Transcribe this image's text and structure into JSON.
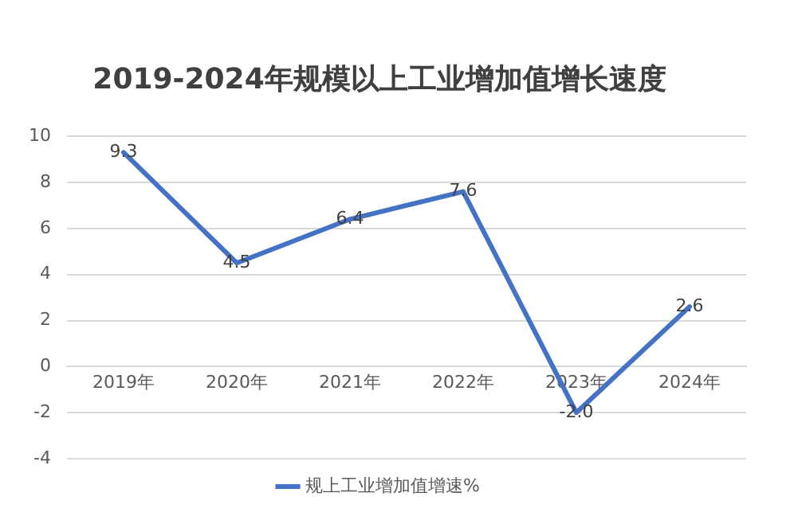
{
  "chart_data": {
    "type": "line",
    "title": "2019-2024年规模以上工业增加值增长速度",
    "categories": [
      "2019年",
      "2020年",
      "2021年",
      "2022年",
      "2023年",
      "2024年"
    ],
    "series": [
      {
        "name": "规上工业增加值增速%",
        "color": "#4472c4",
        "values": [
          9.3,
          4.5,
          6.4,
          7.6,
          -2.0,
          2.6
        ],
        "value_labels": [
          "9.3",
          "4.5",
          "6.4",
          "7.6",
          "-2.0",
          "2.6"
        ]
      }
    ],
    "ylim": [
      -4,
      10
    ],
    "yticks": [
      -4,
      -2,
      0,
      2,
      4,
      6,
      8,
      10
    ],
    "grid": "y",
    "legend": "bottom",
    "line_style": "solid"
  }
}
